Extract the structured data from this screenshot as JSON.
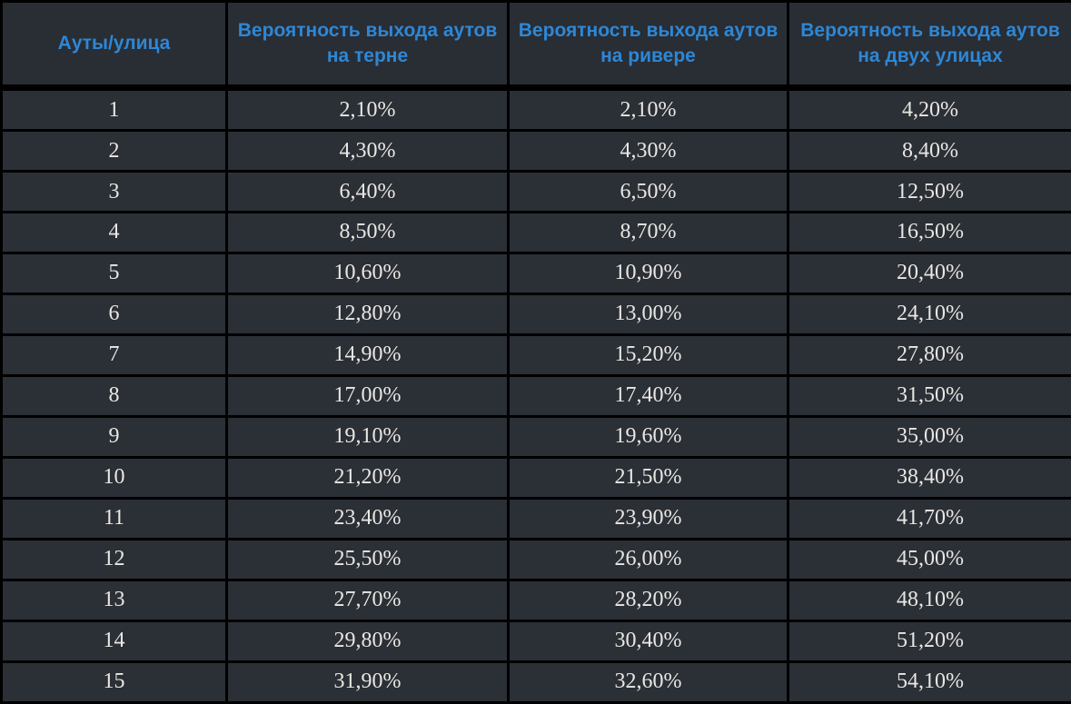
{
  "chart_data": {
    "type": "table",
    "columns": [
      "Ауты/улица",
      "Вероятность выхода аутов на терне",
      "Вероятность выхода аутов на ривере",
      "Вероятность выхода аутов на двух улицах"
    ],
    "rows": [
      [
        "1",
        "2,10%",
        "2,10%",
        "4,20%"
      ],
      [
        "2",
        "4,30%",
        "4,30%",
        "8,40%"
      ],
      [
        "3",
        "6,40%",
        "6,50%",
        "12,50%"
      ],
      [
        "4",
        "8,50%",
        "8,70%",
        "16,50%"
      ],
      [
        "5",
        "10,60%",
        "10,90%",
        "20,40%"
      ],
      [
        "6",
        "12,80%",
        "13,00%",
        "24,10%"
      ],
      [
        "7",
        "14,90%",
        "15,20%",
        "27,80%"
      ],
      [
        "8",
        "17,00%",
        "17,40%",
        "31,50%"
      ],
      [
        "9",
        "19,10%",
        "19,60%",
        "35,00%"
      ],
      [
        "10",
        "21,20%",
        "21,50%",
        "38,40%"
      ],
      [
        "11",
        "23,40%",
        "23,90%",
        "41,70%"
      ],
      [
        "12",
        "25,50%",
        "26,00%",
        "45,00%"
      ],
      [
        "13",
        "27,70%",
        "28,20%",
        "48,10%"
      ],
      [
        "14",
        "29,80%",
        "30,40%",
        "51,20%"
      ],
      [
        "15",
        "31,90%",
        "32,60%",
        "54,10%"
      ]
    ]
  },
  "colors": {
    "background": "#000000",
    "cell_background": "#2b2f36",
    "header_background": "#292d34",
    "header_text": "#2e87d5",
    "cell_text": "#e9e7e3",
    "border": "#000000"
  }
}
